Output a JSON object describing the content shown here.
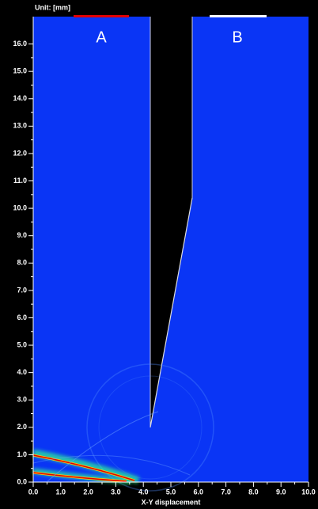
{
  "chart_data": {
    "type": "field",
    "unit": "Unit: [mm]",
    "xlabel": "X-Y displacement",
    "region_labels": [
      "A",
      "B"
    ],
    "xlim": [
      0,
      10
    ],
    "ylim": [
      0,
      17
    ],
    "xticks": [
      {
        "value": 0,
        "label": "0.0"
      },
      {
        "value": 1,
        "label": "1.0"
      },
      {
        "value": 2,
        "label": "2.0"
      },
      {
        "value": 3,
        "label": "3.0"
      },
      {
        "value": 4,
        "label": "4.0"
      },
      {
        "value": 5,
        "label": "5.0"
      },
      {
        "value": 6,
        "label": "6.0"
      },
      {
        "value": 7,
        "label": "7.0"
      },
      {
        "value": 8,
        "label": "8.0"
      },
      {
        "value": 9,
        "label": "9.0"
      },
      {
        "value": 10,
        "label": "10.0"
      }
    ],
    "yticks": [
      {
        "value": 0,
        "label": "0.0"
      },
      {
        "value": 1,
        "label": "1.0"
      },
      {
        "value": 2,
        "label": "2.0"
      },
      {
        "value": 3,
        "label": "3.0"
      },
      {
        "value": 4,
        "label": "4.0"
      },
      {
        "value": 5,
        "label": "5.0"
      },
      {
        "value": 6,
        "label": "6.0"
      },
      {
        "value": 7,
        "label": "7.0"
      },
      {
        "value": 8,
        "label": "8.0"
      },
      {
        "value": 9,
        "label": "9.0"
      },
      {
        "value": 10,
        "label": "10.0"
      },
      {
        "value": 11,
        "label": "11.0"
      },
      {
        "value": 12,
        "label": "12.0"
      },
      {
        "value": 13,
        "label": "13.0"
      },
      {
        "value": 14,
        "label": "14.0"
      },
      {
        "value": 15,
        "label": "15.0"
      },
      {
        "value": 16,
        "label": "16.0"
      }
    ]
  }
}
